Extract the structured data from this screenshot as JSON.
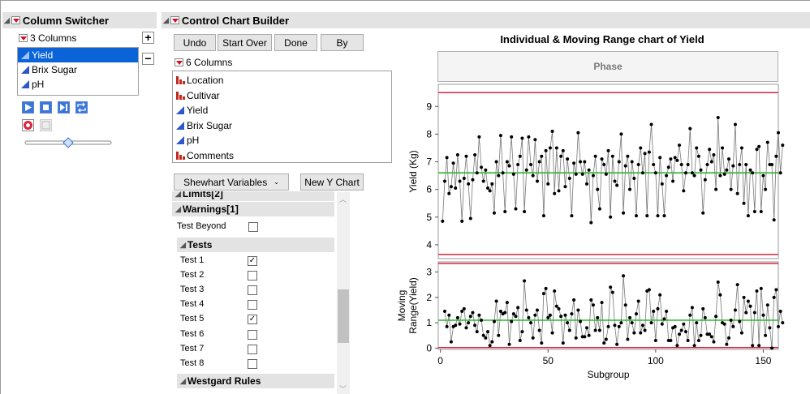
{
  "column_switcher": {
    "title": "Column Switcher",
    "columns_label": "3 Columns",
    "add_symbol": "+",
    "remove_symbol": "−",
    "items": [
      {
        "label": "Yield",
        "type": "continuous",
        "selected": true
      },
      {
        "label": "Brix Sugar",
        "type": "continuous",
        "selected": false
      },
      {
        "label": "pH",
        "type": "continuous",
        "selected": false
      }
    ],
    "slider_value": 0.5
  },
  "builder": {
    "title": "Control Chart Builder",
    "buttons": {
      "undo": "Undo",
      "start_over": "Start Over",
      "done": "Done",
      "by": "By"
    },
    "columns_label": "6 Columns",
    "columns": [
      {
        "label": "Location",
        "type": "nominal"
      },
      {
        "label": "Cultivar",
        "type": "nominal"
      },
      {
        "label": "Yield",
        "type": "continuous"
      },
      {
        "label": "Brix Sugar",
        "type": "continuous"
      },
      {
        "label": "pH",
        "type": "continuous"
      },
      {
        "label": "Comments",
        "type": "nominal"
      }
    ],
    "chart_type": "Shewhart Variables",
    "new_y_chart": "New Y Chart"
  },
  "panel": {
    "limits_label": "Limits[2]",
    "warnings_label": "Warnings[1]",
    "test_beyond_label": "Test Beyond",
    "tests_label": "Tests",
    "tests": [
      {
        "label": "Test 1",
        "checked": true
      },
      {
        "label": "Test 2",
        "checked": false
      },
      {
        "label": "Test 3",
        "checked": false
      },
      {
        "label": "Test 4",
        "checked": false
      },
      {
        "label": "Test 5",
        "checked": true
      },
      {
        "label": "Test 6",
        "checked": false
      },
      {
        "label": "Test 7",
        "checked": false
      },
      {
        "label": "Test 8",
        "checked": false
      }
    ],
    "westgard_label": "Westgard Rules",
    "check_mark": "✓"
  },
  "chart_data": {
    "type": "line",
    "title": "Individual & Moving Range chart of Yield",
    "phase_label": "Phase",
    "xlabel": "Subgroup",
    "x_ticks": [
      0,
      50,
      100,
      150
    ],
    "xlim": [
      -1,
      157
    ],
    "individual": {
      "ylabel": "Yield (Kg)",
      "ylim": [
        3.5,
        9.8
      ],
      "y_ticks": [
        4,
        5,
        6,
        7,
        8,
        9
      ],
      "center": 6.6,
      "ucl": 9.5,
      "lcl": 3.65,
      "colors": {
        "center": "#2fb52f",
        "limit": "#d7263d",
        "line": "#777777",
        "point": "#000000"
      }
    },
    "moving_range": {
      "ylabel": "Moving Range(Yield)",
      "ylim": [
        -0.05,
        3.4
      ],
      "y_ticks": [
        0,
        1,
        2,
        3
      ],
      "center": 1.1,
      "ucl": 3.6,
      "lcl": 0.02
    },
    "values": [
      4.85,
      6.3,
      7.15,
      5.85,
      6.1,
      6.95,
      6.05,
      7.25,
      6.3,
      4.85,
      6.4,
      7.2,
      6.2,
      4.95,
      6.35,
      7.25,
      6.6,
      7.9,
      6.8,
      6.3,
      6.7,
      6.05,
      5.95,
      6.2,
      5.15,
      7.0,
      6.5,
      7.95,
      6.6,
      5.2,
      7.0,
      6.85,
      7.9,
      6.55,
      5.3,
      6.9,
      7.2,
      7.85,
      5.2,
      6.7,
      7.9,
      6.9,
      6.5,
      7.8,
      6.3,
      7.0,
      7.2,
      5.05,
      7.4,
      6.2,
      7.5,
      8.1,
      5.85,
      7.5,
      5.95,
      7.2,
      7.4,
      6.1,
      7.1,
      6.4,
      5.05,
      6.95,
      6.55,
      8.05,
      7.0,
      6.55,
      7.0,
      6.2,
      6.7,
      4.8,
      6.5,
      7.2,
      6.0,
      5.3,
      7.1,
      6.9,
      6.55,
      7.4,
      5.0,
      7.2,
      6.3,
      6.15,
      7.0,
      8.0,
      5.15,
      6.85,
      7.2,
      6.0,
      7.0,
      6.4,
      5.05,
      6.9,
      7.5,
      6.6,
      7.3,
      5.05,
      7.35,
      8.35,
      6.9,
      6.6,
      5.05,
      7.15,
      6.2,
      5.05,
      6.5,
      6.8,
      7.1,
      6.3,
      7.15,
      7.05,
      7.6,
      6.9,
      5.95,
      6.6,
      6.9,
      8.2,
      6.6,
      6.5,
      7.5,
      7.2,
      6.7,
      5.15,
      6.35,
      6.9,
      7.45,
      7.0,
      7.25,
      6.0,
      8.6,
      6.5,
      7.5,
      6.55,
      6.7,
      7.1,
      6.0,
      6.85,
      8.35,
      5.85,
      6.9,
      7.5,
      5.5,
      6.9,
      5.05,
      6.7,
      6.6,
      5.2,
      7.45,
      7.55,
      5.2,
      6.5,
      6.0,
      7.7,
      6.9,
      6.9,
      4.9,
      7.2,
      8.05,
      6.6,
      7.6
    ]
  }
}
